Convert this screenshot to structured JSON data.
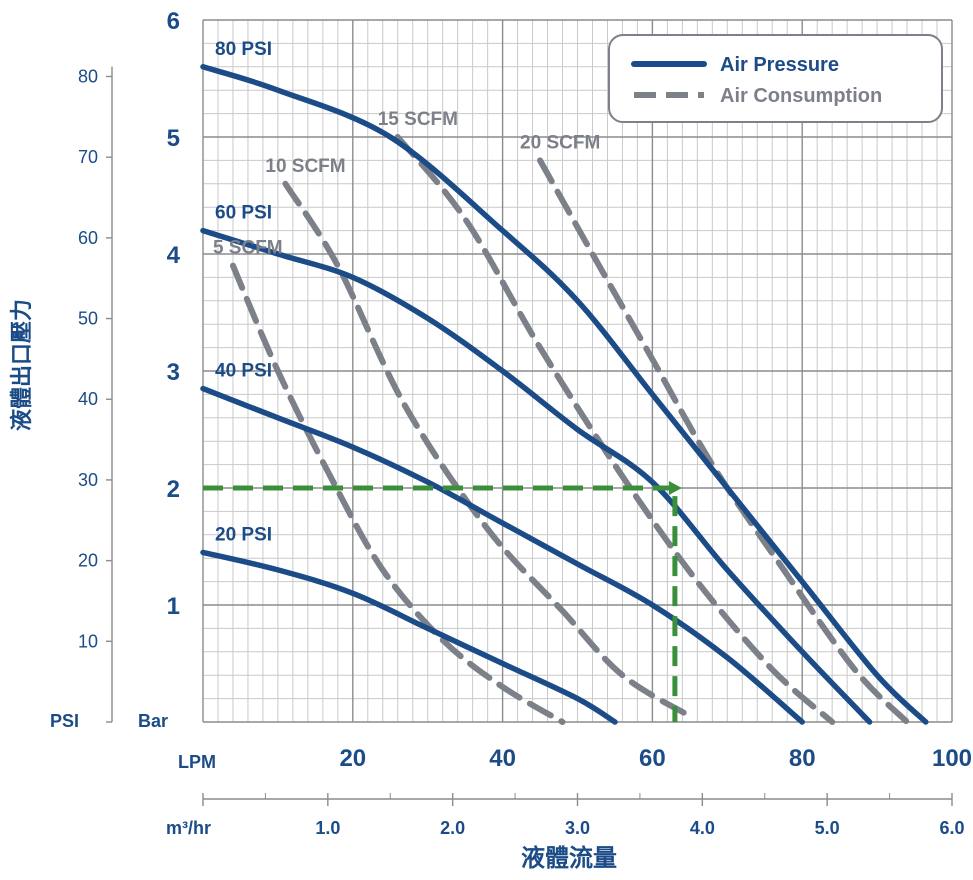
{
  "chart_data": {
    "type": "line",
    "x_axes": {
      "primary": {
        "unit_label": "LPM",
        "ticks": [
          "20",
          "40",
          "60",
          "80",
          "100"
        ],
        "range": [
          0,
          100
        ]
      },
      "secondary": {
        "unit_label": "m³/hr",
        "ticks": [
          "1.0",
          "2.0",
          "3.0",
          "4.0",
          "5.0",
          "6.0"
        ],
        "range": [
          0,
          6
        ]
      },
      "title": "液體流量"
    },
    "y_axes": {
      "left": {
        "unit_label": "PSI",
        "ticks": [
          "10",
          "20",
          "30",
          "40",
          "50",
          "60",
          "70",
          "80"
        ],
        "range": [
          0,
          87
        ]
      },
      "right": {
        "unit_label": "Bar",
        "ticks": [
          "1",
          "2",
          "3",
          "4",
          "5",
          "6"
        ],
        "range": [
          0,
          6
        ]
      },
      "title": "液體出口壓力"
    },
    "legend": {
      "position": "top-right",
      "entries": [
        {
          "label": "Air Pressure",
          "style": "solid"
        },
        {
          "label": "Air Consumption",
          "style": "dashed"
        }
      ]
    },
    "pressure_curves": [
      {
        "label": "80 PSI",
        "points": [
          [
            0,
            5.6
          ],
          [
            10,
            5.4
          ],
          [
            25,
            5.0
          ],
          [
            40,
            4.2
          ],
          [
            50,
            3.6
          ],
          [
            60,
            2.8
          ],
          [
            70,
            2.0
          ],
          [
            80,
            1.2
          ],
          [
            90,
            0.4
          ],
          [
            96.5,
            0.0
          ]
        ]
      },
      {
        "label": "60 PSI",
        "points": [
          [
            0,
            4.2
          ],
          [
            10,
            4.0
          ],
          [
            20,
            3.8
          ],
          [
            30,
            3.45
          ],
          [
            40,
            3.0
          ],
          [
            50,
            2.5
          ],
          [
            60,
            2.05
          ],
          [
            70,
            1.3
          ],
          [
            80,
            0.6
          ],
          [
            89,
            0.0
          ]
        ]
      },
      {
        "label": "40 PSI",
        "points": [
          [
            0,
            2.85
          ],
          [
            10,
            2.6
          ],
          [
            20,
            2.35
          ],
          [
            30,
            2.05
          ],
          [
            40,
            1.7
          ],
          [
            50,
            1.35
          ],
          [
            60,
            1.0
          ],
          [
            70,
            0.55
          ],
          [
            80,
            0.0
          ]
        ]
      },
      {
        "label": "20 PSI",
        "points": [
          [
            0,
            1.45
          ],
          [
            10,
            1.3
          ],
          [
            20,
            1.1
          ],
          [
            30,
            0.8
          ],
          [
            40,
            0.5
          ],
          [
            50,
            0.2
          ],
          [
            55,
            0.0
          ]
        ]
      }
    ],
    "consumption_curves": [
      {
        "label": "5 SCFM",
        "points": [
          [
            4,
            3.9
          ],
          [
            10,
            3.0
          ],
          [
            17,
            2.1
          ],
          [
            24,
            1.3
          ],
          [
            32,
            0.7
          ],
          [
            40,
            0.3
          ],
          [
            48,
            0.0
          ]
        ]
      },
      {
        "label": "10 SCFM",
        "points": [
          [
            11,
            4.6
          ],
          [
            18,
            3.9
          ],
          [
            27,
            2.7
          ],
          [
            38,
            1.65
          ],
          [
            48,
            0.95
          ],
          [
            56,
            0.4
          ],
          [
            65,
            0.05
          ]
        ]
      },
      {
        "label": "15 SCFM",
        "points": [
          [
            26,
            5.0
          ],
          [
            35,
            4.3
          ],
          [
            45,
            3.2
          ],
          [
            56,
            2.1
          ],
          [
            66,
            1.2
          ],
          [
            76,
            0.45
          ],
          [
            84,
            0.0
          ]
        ]
      },
      {
        "label": "20 SCFM",
        "points": [
          [
            45,
            4.8
          ],
          [
            52,
            4.0
          ],
          [
            60,
            3.1
          ],
          [
            68,
            2.2
          ],
          [
            77,
            1.35
          ],
          [
            87,
            0.45
          ],
          [
            94,
            0.0
          ]
        ]
      }
    ],
    "guide_line": {
      "color": "#3a8f3a",
      "points": [
        [
          0,
          2.0
        ],
        [
          63,
          2.0
        ],
        [
          63,
          0.0
        ]
      ]
    },
    "grid": true
  },
  "colors": {
    "pressure": "#1c4c87",
    "consumption": "#7c8088",
    "axis_text": "#1c4c87",
    "grid_major": "#8c8c8c",
    "grid_minor": "#c9c9c9",
    "guide": "#3a8f3a"
  }
}
